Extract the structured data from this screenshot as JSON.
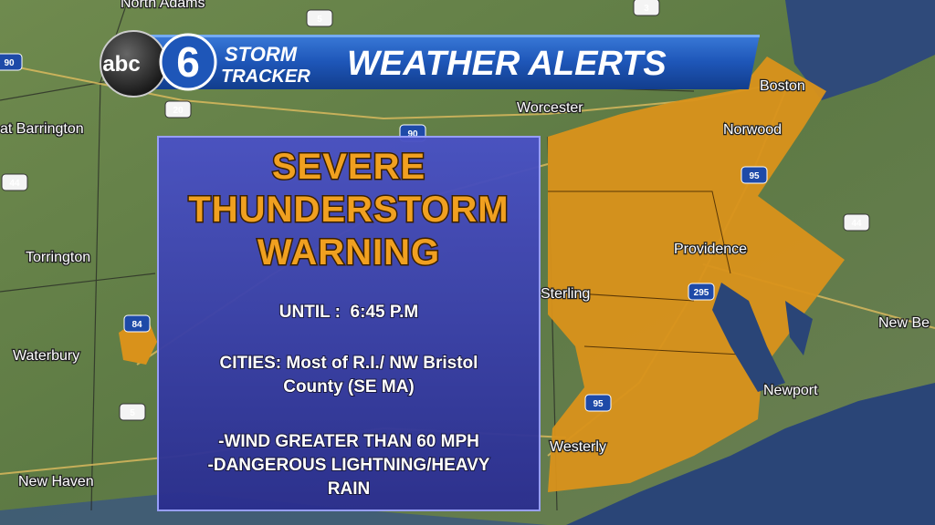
{
  "header": {
    "logo_abc": "abc",
    "logo_number": "6",
    "brand_line1": "STORM",
    "brand_line2": "TRACKER",
    "title": "WEATHER ALERTS"
  },
  "warning": {
    "title_lines": [
      "SEVERE",
      "THUNDERSTORM",
      "WARNING"
    ],
    "until": "UNTIL :  6:45 P.M",
    "cities_lines": [
      "CITIES: Most of R.I./ NW Bristol",
      "County (SE MA)"
    ],
    "hazard_lines": [
      "-WIND GREATER THAN 60 MPH",
      "-DANGEROUS LIGHTNING/HEAVY",
      "RAIN"
    ]
  },
  "map": {
    "places": [
      "North Adams",
      "at Barrington",
      "Worcester",
      "Boston",
      "Norwood",
      "Torrington",
      "Providence",
      "Sterling",
      "New Be",
      "Waterbury",
      "Newport",
      "Westerly",
      "New Haven"
    ],
    "routes": [
      "5",
      "3",
      "90",
      "20",
      "90",
      "44",
      "95",
      "44",
      "295",
      "84",
      "95",
      "5"
    ]
  }
}
